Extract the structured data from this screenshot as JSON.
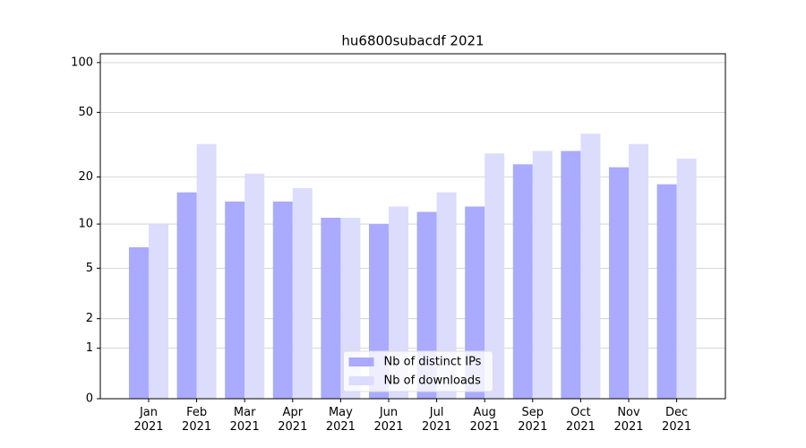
{
  "chart_data": {
    "type": "bar",
    "title": "hu6800subacdf 2021",
    "categories": [
      "Jan\n2021",
      "Feb\n2021",
      "Mar\n2021",
      "Apr\n2021",
      "May\n2021",
      "Jun\n2021",
      "Jul\n2021",
      "Aug\n2021",
      "Sep\n2021",
      "Oct\n2021",
      "Nov\n2021",
      "Dec\n2021"
    ],
    "series": [
      {
        "name": "Nb of distinct IPs",
        "color": "#aaaaff",
        "values": [
          7,
          16,
          14,
          14,
          11,
          10,
          12,
          13,
          24,
          29,
          23,
          18
        ]
      },
      {
        "name": "Nb of downloads",
        "color": "#dcdcfd",
        "values": [
          10,
          32,
          21,
          17,
          11,
          13,
          16,
          28,
          29,
          37,
          32,
          26
        ]
      }
    ],
    "yscale": "symlog",
    "ylim": [
      0,
      113
    ],
    "yticks": [
      0,
      1,
      2,
      5,
      10,
      20,
      50,
      100
    ],
    "grid": true,
    "legend": "lower center"
  }
}
